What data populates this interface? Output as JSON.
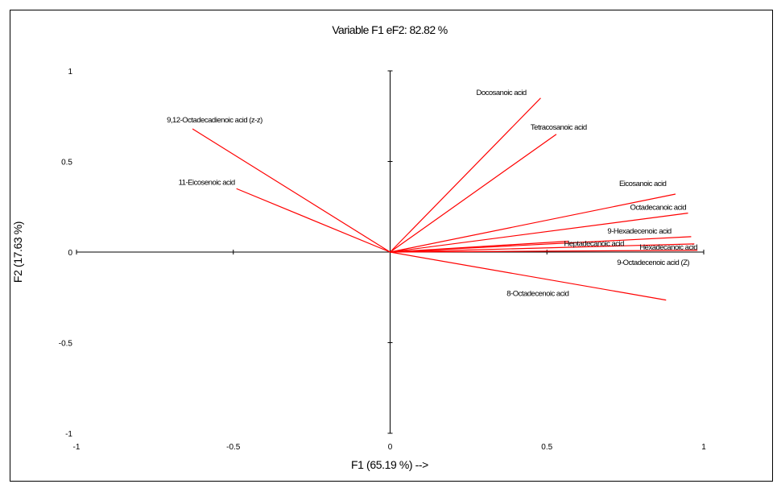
{
  "chart_data": {
    "type": "biplot",
    "title": "Variable F1 eF2: 82.82 %",
    "xlabel": "F1 (65.19 %) -->",
    "ylabel": "F2 (17.63 %)",
    "xlim": [
      -1,
      1
    ],
    "ylim": [
      -1,
      1
    ],
    "xticks": [
      "-1",
      "-0.5",
      "0",
      "0.5",
      "1"
    ],
    "yticks": [
      "1",
      "0.5",
      "0",
      "-0.5",
      "-1"
    ],
    "vector_color": "#ff0000",
    "variables": [
      {
        "name": "Docosanoic acid",
        "x": 0.48,
        "y": 0.85
      },
      {
        "name": "Tetracosanoic acid",
        "x": 0.53,
        "y": 0.65
      },
      {
        "name": "9,12-Octadecadienoic acid (z-z)",
        "x": -0.63,
        "y": 0.68
      },
      {
        "name": "11-Eicosenoic acid",
        "x": -0.49,
        "y": 0.35
      },
      {
        "name": "Eicosanoic acid",
        "x": 0.91,
        "y": 0.32
      },
      {
        "name": "Octadecanoic acid",
        "x": 0.95,
        "y": 0.215
      },
      {
        "name": "9-Hexadecenoic acid",
        "x": 0.96,
        "y": 0.085
      },
      {
        "name": "Hexadecanoic acid",
        "x": 0.97,
        "y": 0.045
      },
      {
        "name": "Heptadecanoic acid",
        "x": 0.57,
        "y": 0.06
      },
      {
        "name": "9-Octadecenoic acid (Z)",
        "x": 0.98,
        "y": 0.01
      },
      {
        "name": "8-Octadecenoic acid",
        "x": 0.88,
        "y": -0.265
      }
    ]
  }
}
